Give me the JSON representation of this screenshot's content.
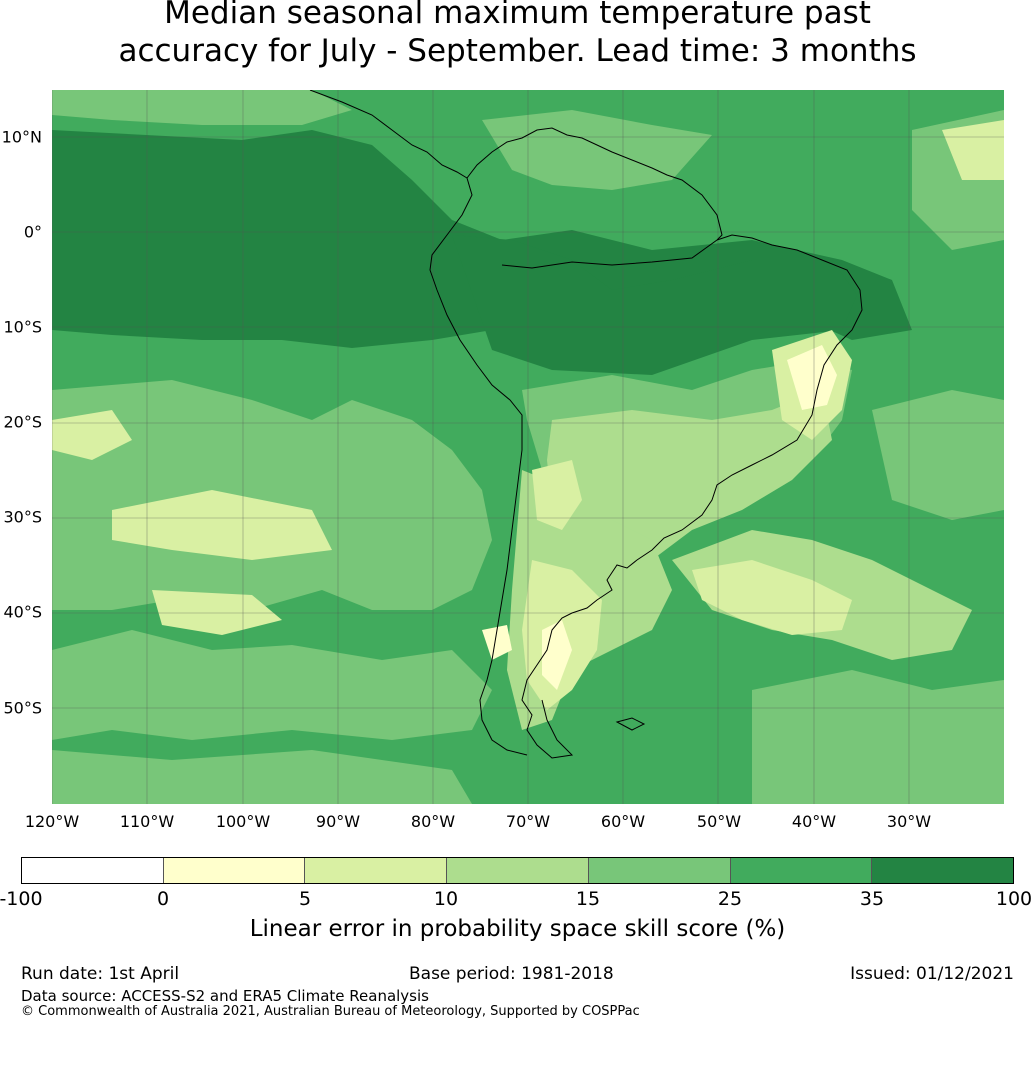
{
  "title_line1": "Median seasonal maximum temperature past",
  "title_line2": "accuracy for July - September. Lead time: 3 months",
  "map": {
    "lon_range": [
      -124,
      -24
    ],
    "lat_range": [
      -60,
      15
    ],
    "lat_ticks": [
      "10°N",
      "0°",
      "10°S",
      "20°S",
      "30°S",
      "40°S",
      "50°S"
    ],
    "lat_values": [
      10,
      0,
      -10,
      -20,
      -30,
      -40,
      -50
    ],
    "lon_ticks": [
      "120°W",
      "110°W",
      "100°W",
      "90°W",
      "80°W",
      "70°W",
      "60°W",
      "50°W",
      "40°W",
      "30°W"
    ],
    "lon_values": [
      -120,
      -110,
      -100,
      -90,
      -80,
      -70,
      -60,
      -50,
      -40,
      -30
    ],
    "coastline_color": "#000000",
    "gridline_color": "#555555"
  },
  "colorbar": {
    "boundaries": [
      "-100",
      "0",
      "5",
      "10",
      "15",
      "25",
      "35",
      "100"
    ],
    "colors": [
      "#ffffff",
      "#ffffcc",
      "#d9f0a3",
      "#addd8e",
      "#78c679",
      "#41ab5d",
      "#238443"
    ],
    "label": "Linear error in probability space skill score (%)"
  },
  "footer": {
    "run_date": "Run date: 1st April",
    "base_period": "Base period: 1981-2018",
    "issued": "Issued: 01/12/2021",
    "data_source": "Data source: ACCESS-S2 and ERA5 Climate Reanalysis",
    "copyright": "© Commonwealth of Australia 2021, Australian Bureau of Meteorology, Supported by COSPPac"
  }
}
